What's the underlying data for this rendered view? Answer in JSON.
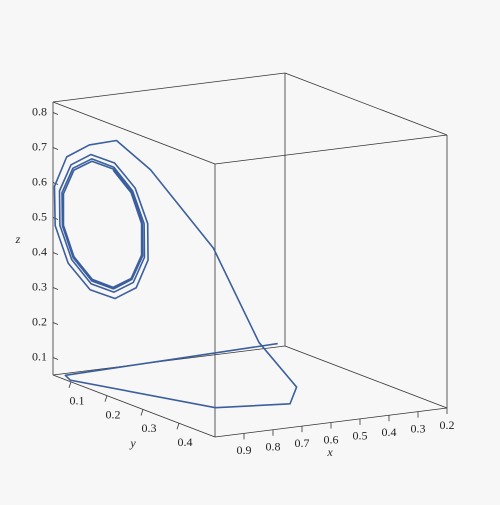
{
  "chart_data": {
    "type": "line3d",
    "xlabel": "x",
    "ylabel": "y",
    "zlabel": "z",
    "color": "#3b5f9e",
    "xlim": [
      0.2,
      1.0
    ],
    "ylim": [
      0.05,
      0.5
    ],
    "zlim": [
      0.05,
      0.83
    ],
    "xticks": [
      0.2,
      0.3,
      0.4,
      0.5,
      0.6,
      0.7,
      0.8,
      0.9
    ],
    "yticks": [
      0.1,
      0.2,
      0.3,
      0.4
    ],
    "zticks": [
      0.1,
      0.2,
      0.3,
      0.4,
      0.5,
      0.6,
      0.7,
      0.8
    ],
    "x": [
      0.25,
      0.6,
      0.97,
      0.99,
      0.8,
      0.58,
      0.52,
      0.6,
      0.72,
      0.85,
      0.93,
      0.99,
      0.99,
      0.99,
      0.99,
      0.99,
      0.99,
      0.99,
      0.99,
      0.99,
      0.99,
      0.99,
      0.99,
      0.99,
      0.99,
      0.99,
      0.99,
      0.99,
      0.99,
      0.99,
      0.99,
      0.99,
      0.99,
      0.99,
      0.99,
      0.99,
      0.99,
      0.99,
      0.99,
      0.99,
      0.99,
      0.99,
      0.99,
      0.99,
      0.99,
      0.99,
      0.99,
      0.99,
      0.99,
      0.99,
      0.99,
      0.99,
      0.99,
      0.99,
      0.99,
      0.99,
      0.99,
      0.99,
      0.99
    ],
    "y": [
      0.07,
      0.065,
      0.06,
      0.09,
      0.34,
      0.37,
      0.34,
      0.3,
      0.27,
      0.2,
      0.17,
      0.143,
      0.08,
      0.046,
      0.048,
      0.084,
      0.145,
      0.214,
      0.273,
      0.306,
      0.305,
      0.27,
      0.213,
      0.147,
      0.092,
      0.06,
      0.061,
      0.094,
      0.148,
      0.211,
      0.265,
      0.296,
      0.295,
      0.263,
      0.211,
      0.15,
      0.097,
      0.067,
      0.068,
      0.098,
      0.15,
      0.21,
      0.261,
      0.291,
      0.29,
      0.261,
      0.21,
      0.15,
      0.1,
      0.071,
      0.071,
      0.1,
      0.151,
      0.209,
      0.259,
      0.288,
      0.288,
      0.259,
      0.209
    ],
    "z": [
      0.07,
      0.06,
      0.05,
      0.05,
      0.05,
      0.05,
      0.08,
      0.2,
      0.47,
      0.68,
      0.76,
      0.743,
      0.684,
      0.586,
      0.475,
      0.382,
      0.33,
      0.332,
      0.386,
      0.478,
      0.582,
      0.67,
      0.719,
      0.717,
      0.666,
      0.579,
      0.481,
      0.396,
      0.348,
      0.349,
      0.398,
      0.482,
      0.578,
      0.659,
      0.706,
      0.706,
      0.658,
      0.577,
      0.483,
      0.403,
      0.357,
      0.358,
      0.405,
      0.484,
      0.576,
      0.654,
      0.7,
      0.699,
      0.654,
      0.575,
      0.485,
      0.407,
      0.362,
      0.362,
      0.407,
      0.485,
      0.575,
      0.652,
      0.697
    ]
  }
}
